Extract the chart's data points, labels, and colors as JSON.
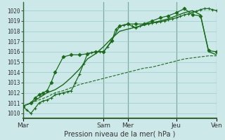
{
  "title": "Pression niveau de la mer( hPa )",
  "background_color": "#cce8e8",
  "grid_color": "#99cccc",
  "line_color": "#1a6b1a",
  "ylim": [
    1009.5,
    1020.8
  ],
  "yticks": [
    1010,
    1011,
    1012,
    1013,
    1014,
    1015,
    1016,
    1017,
    1018,
    1019,
    1020
  ],
  "x_day_labels": [
    "Mar",
    "Sam",
    "Mer",
    "Jeu",
    "Ven"
  ],
  "x_day_positions": [
    0,
    10,
    13,
    19,
    24
  ],
  "xlim": [
    0,
    26
  ],
  "series": [
    {
      "x": [
        0,
        0.5,
        1,
        1.5,
        2,
        2.5,
        3,
        3.5,
        4,
        4.5,
        5,
        5.5,
        6,
        6.5,
        7,
        7.5,
        8,
        8.5,
        9,
        9.5,
        10,
        10.5,
        11,
        11.5,
        12,
        12.5,
        13,
        13.5,
        14,
        14.5,
        15,
        15.5,
        16,
        16.5,
        17,
        17.5,
        18,
        18.5,
        19,
        19.5,
        20,
        20.5,
        21,
        21.5,
        22,
        22.5,
        23,
        23.5,
        24
      ],
      "y": [
        1010.7,
        1010.3,
        1010.0,
        1010.5,
        1011.0,
        1011.2,
        1011.3,
        1011.5,
        1011.8,
        1011.9,
        1012.0,
        1012.1,
        1012.2,
        1013.0,
        1013.8,
        1014.8,
        1015.8,
        1015.9,
        1016.0,
        1016.0,
        1016.0,
        1016.5,
        1017.0,
        1018.2,
        1018.5,
        1018.6,
        1018.7,
        1018.5,
        1018.3,
        1018.5,
        1018.7,
        1018.75,
        1018.8,
        1018.85,
        1018.9,
        1019.0,
        1019.1,
        1019.2,
        1019.3,
        1019.45,
        1019.6,
        1019.7,
        1019.85,
        1019.95,
        1020.1,
        1020.2,
        1020.2,
        1020.1,
        1020.0
      ],
      "marker": "+"
    },
    {
      "x": [
        0,
        1,
        1.5,
        2,
        2.5,
        3,
        3.5,
        4,
        5,
        6,
        7,
        8,
        9,
        10,
        11,
        12,
        13,
        14,
        15,
        16,
        17,
        18,
        19,
        20,
        21,
        22,
        23,
        24
      ],
      "y": [
        1010.7,
        1011.0,
        1011.5,
        1011.8,
        1012.0,
        1012.2,
        1013.0,
        1014.0,
        1015.5,
        1015.7,
        1015.7,
        1015.8,
        1016.0,
        1016.0,
        1017.1,
        1018.5,
        1018.7,
        1018.7,
        1018.7,
        1019.0,
        1019.3,
        1019.5,
        1019.8,
        1020.2,
        1019.6,
        1019.5,
        1016.1,
        1016.0
      ],
      "marker": "D"
    },
    {
      "x": [
        0,
        1,
        2,
        3,
        4,
        5,
        6,
        7,
        8,
        9,
        10,
        11,
        12,
        13,
        14,
        15,
        16,
        17,
        18,
        19,
        20,
        21,
        22,
        23,
        24
      ],
      "y": [
        1010.7,
        1011.0,
        1011.5,
        1012.0,
        1012.3,
        1012.8,
        1013.5,
        1014.3,
        1015.3,
        1015.8,
        1016.5,
        1017.3,
        1018.0,
        1018.2,
        1018.4,
        1018.6,
        1018.8,
        1019.0,
        1019.2,
        1019.5,
        1019.8,
        1020.0,
        1019.6,
        1016.0,
        1015.7
      ],
      "marker": "None"
    },
    {
      "x": [
        0,
        1,
        2,
        3,
        4,
        5,
        6,
        7,
        8,
        9,
        10,
        11,
        12,
        13,
        14,
        15,
        16,
        17,
        18,
        19,
        20,
        21,
        22,
        23,
        24
      ],
      "y": [
        1010.7,
        1011.0,
        1011.3,
        1011.6,
        1012.0,
        1012.2,
        1012.5,
        1012.8,
        1013.0,
        1013.2,
        1013.4,
        1013.6,
        1013.8,
        1014.0,
        1014.2,
        1014.4,
        1014.5,
        1014.7,
        1014.9,
        1015.1,
        1015.3,
        1015.4,
        1015.5,
        1015.6,
        1015.6
      ],
      "marker": "None"
    }
  ]
}
